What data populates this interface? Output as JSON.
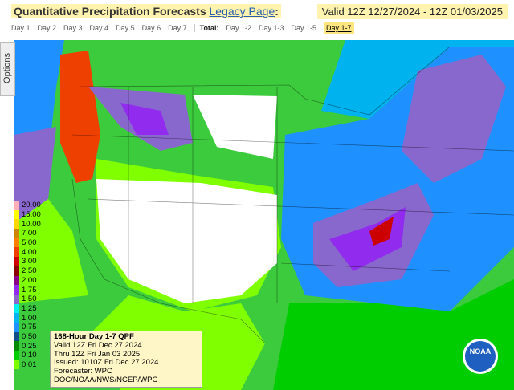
{
  "header": {
    "title": "Quantitative Precipitation Forecasts",
    "link": "Legacy Page",
    "colon": ":",
    "valid": "Valid 12Z 12/27/2024 - 12Z 01/03/2025"
  },
  "tabs": {
    "days": [
      "Day 1",
      "Day 2",
      "Day 3",
      "Day 4",
      "Day 5",
      "Day 6",
      "Day 7"
    ],
    "total_label": "Total:",
    "totals": [
      "Day 1-2",
      "Day 1-3",
      "Day 1-5",
      "Day 1-7"
    ],
    "selected": "Day 1-7"
  },
  "sidebar": {
    "label": "Options"
  },
  "legend": [
    {
      "label": "20.00",
      "color": "#ffaeb9"
    },
    {
      "label": "15.00",
      "color": "#ffff00"
    },
    {
      "label": "10.00",
      "color": "#ffd700"
    },
    {
      "label": "7.00",
      "color": "#cd8500"
    },
    {
      "label": "5.00",
      "color": "#ff7f00"
    },
    {
      "label": "4.00",
      "color": "#ee4000"
    },
    {
      "label": "3.00",
      "color": "#cd0000"
    },
    {
      "label": "2.50",
      "color": "#8b0000"
    },
    {
      "label": "2.00",
      "color": "#8b008b"
    },
    {
      "label": "1.75",
      "color": "#912cee"
    },
    {
      "label": "1.50",
      "color": "#8968cd"
    },
    {
      "label": "1.25",
      "color": "#00eeee"
    },
    {
      "label": "1.00",
      "color": "#00b2ee"
    },
    {
      "label": "0.75",
      "color": "#1e90ff"
    },
    {
      "label": "0.50",
      "color": "#104e8b"
    },
    {
      "label": "0.25",
      "color": "#008b00"
    },
    {
      "label": "0.10",
      "color": "#00cd00"
    },
    {
      "label": "0.01",
      "color": "#7fff00"
    }
  ],
  "info": [
    "168-Hour Day 1-7 QPF",
    "Valid 12Z Fri Dec 27 2024",
    "Thru 12Z Fri Jan 03 2025",
    "Issued: 1010Z Fri Dec 27 2024",
    "Forecaster: WPC",
    "DOC/NOAA/NWS/NCEP/WPC"
  ],
  "logo": "NOAA"
}
